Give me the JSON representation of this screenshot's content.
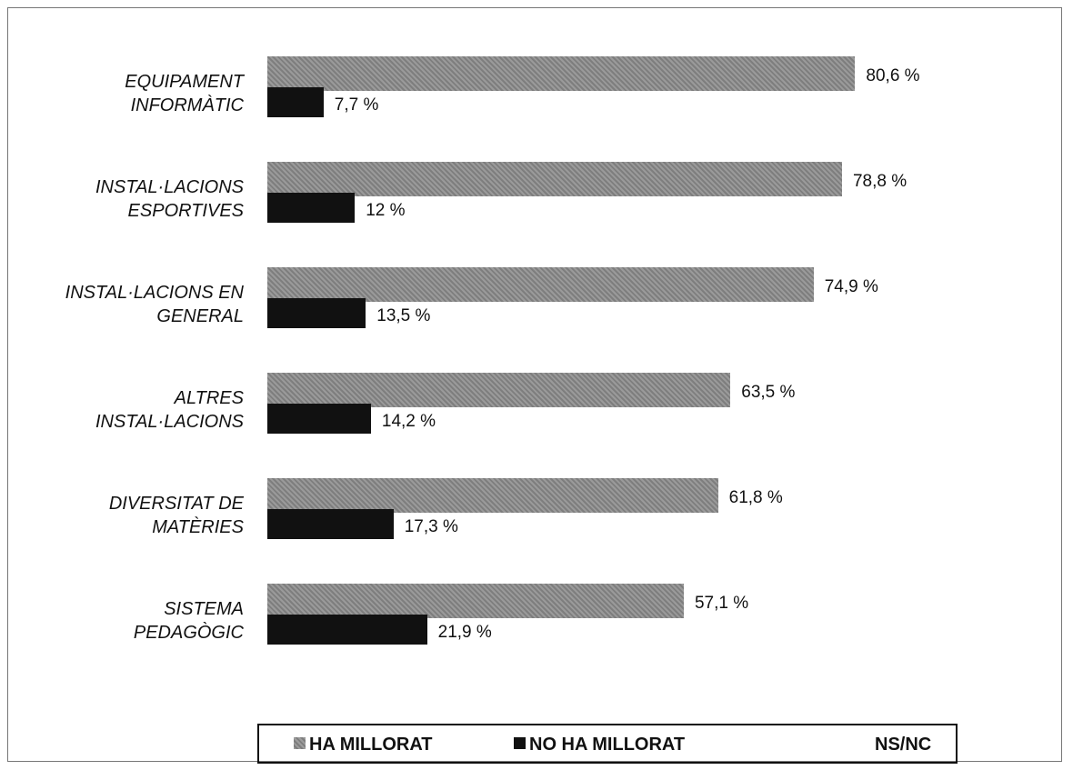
{
  "chart_data": {
    "type": "bar",
    "orientation": "horizontal",
    "categories": [
      "EQUIPAMENT\nINFORMÀTIC",
      "INSTAL·LACIONS\nESPORTIVES",
      "INSTAL·LACIONS EN\nGENERAL",
      "ALTRES\nINSTAL·LACIONS",
      "DIVERSITAT DE\nMATÈRIES",
      "SISTEMA\nPEDAGÒGIC"
    ],
    "series": [
      {
        "name": "HA MILLORAT",
        "color": "#8c8c8c",
        "values": [
          80.6,
          78.8,
          74.9,
          63.5,
          61.8,
          57.1
        ],
        "value_labels": [
          "80,6 %",
          "78,8 %",
          "74,9 %",
          "63,5 %",
          "61,8 %",
          "57,1 %"
        ]
      },
      {
        "name": "NO HA MILLORAT",
        "color": "#111111",
        "values": [
          7.7,
          12,
          13.5,
          14.2,
          17.3,
          21.9
        ],
        "value_labels": [
          "7,7 %",
          "12 %",
          "13,5 %",
          "14,2 %",
          "17,3 %",
          "21,9 %"
        ]
      },
      {
        "name": "NS/NC",
        "color": "#ffffff",
        "values": [
          null,
          null,
          null,
          null,
          null,
          null
        ]
      }
    ],
    "legend": "bottom"
  }
}
